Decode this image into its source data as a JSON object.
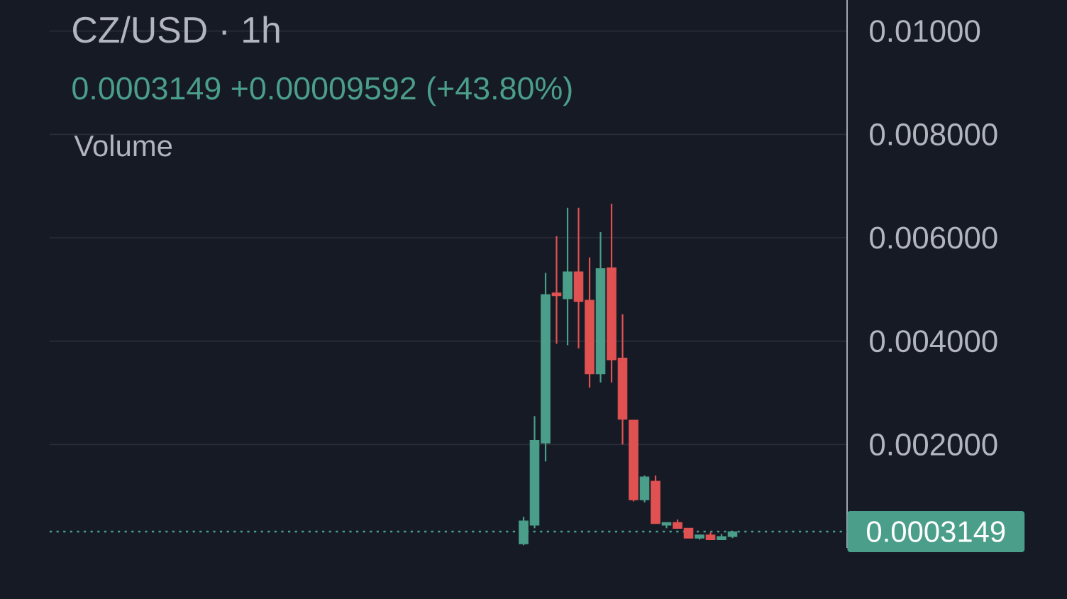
{
  "chart_data": {
    "type": "candlestick",
    "title": "CZ/USD · 1h",
    "subtitle": "0.0003149 +0.00009592 (+43.80%)",
    "annotations": [
      "Volume"
    ],
    "categories": [
      null,
      null,
      null,
      null,
      null,
      null,
      null,
      null,
      null,
      null,
      null,
      null,
      null,
      null,
      null,
      null,
      null,
      null,
      null,
      null
    ],
    "ohlc": [
      [
        8e-05,
        0.0006,
        5e-05,
        0.00052
      ],
      [
        0.00044,
        0.00255,
        0.00038,
        0.00208
      ],
      [
        0.00203,
        0.00532,
        0.00167,
        0.0049
      ],
      [
        0.00493,
        0.00603,
        0.00395,
        0.00488
      ],
      [
        0.00482,
        0.00658,
        0.00392,
        0.00534
      ],
      [
        0.00534,
        0.00658,
        0.00386,
        0.00477
      ],
      [
        0.00479,
        0.00562,
        0.0031,
        0.00337
      ],
      [
        0.00337,
        0.00611,
        0.0032,
        0.0054
      ],
      [
        0.00542,
        0.00666,
        0.0032,
        0.00364
      ],
      [
        0.00367,
        0.00452,
        0.002,
        0.00249
      ],
      [
        0.00247,
        0.00247,
        0.0009,
        0.00093
      ],
      [
        0.00093,
        0.0014,
        0.00088,
        0.00137
      ],
      [
        0.00129,
        0.0014,
        0.00047,
        0.00047
      ],
      [
        0.00044,
        0.00049,
        0.00038,
        0.00049
      ],
      [
        0.00049,
        0.00055,
        0.00038,
        0.00038
      ],
      [
        0.00038,
        0.00038,
        0.00019,
        0.00019
      ],
      [
        0.00019,
        0.00025,
        0.00016,
        0.00025
      ],
      [
        0.00025,
        0.0003,
        0.00016,
        0.00016
      ],
      [
        0.00016,
        0.00027,
        0.00016,
        0.00022
      ],
      [
        0.00022,
        0.00032,
        0.00019,
        0.00031
      ]
    ],
    "colors": [
      "#4A9E8A",
      "#4A9E8A",
      "#4A9E8A",
      "#E05252",
      "#4A9E8A",
      "#E05252",
      "#E05252",
      "#4A9E8A",
      "#E05252",
      "#E05252",
      "#E05252",
      "#4A9E8A",
      "#E05252",
      "#4A9E8A",
      "#E05252",
      "#E05252",
      "#4A9E8A",
      "#E05252",
      "#4A9E8A",
      "#4A9E8A"
    ],
    "ylim": [
      0,
      0.0106
    ],
    "yticks": [
      {
        "value": 0.002,
        "label": "0.002000"
      },
      {
        "value": 0.004,
        "label": "0.004000"
      },
      {
        "value": 0.006,
        "label": "0.006000"
      },
      {
        "value": 0.008,
        "label": "0.008000"
      },
      {
        "value": 0.01,
        "label": "0.01000"
      }
    ],
    "grid": "y",
    "tick_labels": "y",
    "ref_lines": [
      {
        "axis": "y",
        "value": 0.0003149,
        "label": "0.0003149",
        "color": "#4A9E8A",
        "line_style": "dotted"
      }
    ]
  }
}
